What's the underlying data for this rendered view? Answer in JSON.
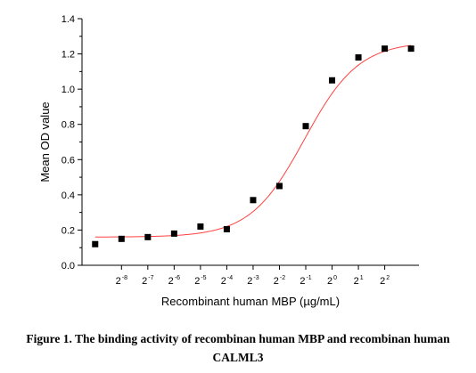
{
  "chart_data": {
    "type": "scatter",
    "xlabel": "Recombinant human MBP (µg/mL)",
    "ylabel": "Mean OD value",
    "x_scale": "log2",
    "x_tick_base": "2",
    "x_tick_exponents": [
      "-8",
      "-7",
      "-6",
      "-5",
      "-4",
      "-3",
      "-2",
      "-1",
      "0",
      "1",
      "2"
    ],
    "xlim": [
      -9.5,
      3.3
    ],
    "ylim": [
      0,
      1.4
    ],
    "y_ticks": [
      "0.0",
      "0.2",
      "0.4",
      "0.6",
      "0.8",
      "1.0",
      "1.2",
      "1.4"
    ],
    "grid": false,
    "series": [
      {
        "kind": "points",
        "marker": "square",
        "color": "#000000",
        "x_log2": [
          -9,
          -8,
          -7,
          -6,
          -5,
          -4,
          -3,
          -2,
          -1,
          0,
          1,
          2,
          3
        ],
        "y": [
          0.12,
          0.15,
          0.16,
          0.18,
          0.22,
          0.205,
          0.37,
          0.45,
          0.79,
          1.05,
          1.18,
          1.23,
          1.23
        ]
      },
      {
        "kind": "fit",
        "color": "#ff4040",
        "bottom": 0.16,
        "top": 1.27,
        "ec50_log2": -1.05,
        "hill": 1.4
      }
    ]
  },
  "caption": {
    "line1": "Figure 1. The binding activity of recombinan human MBP and recombinan human",
    "line2": "CALML3"
  }
}
